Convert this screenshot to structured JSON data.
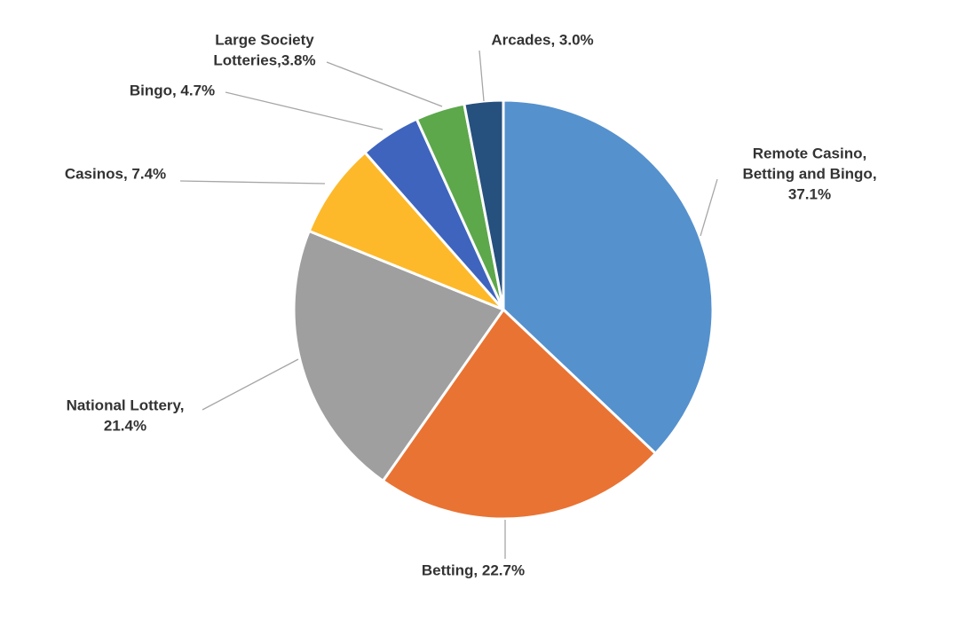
{
  "chart_data": {
    "type": "pie",
    "labels": [
      [
        "Remote Casino,",
        "Betting and Bingo,",
        "37.1%"
      ],
      [
        "Betting, 22.7%"
      ],
      [
        "National Lottery,",
        "21.4%"
      ],
      [
        "Casinos, 7.4%"
      ],
      [
        "Bingo, 4.7%"
      ],
      [
        "Large Society",
        "Lotteries,3.8%"
      ],
      [
        "Arcades, 3.0%"
      ]
    ],
    "values": [
      37.1,
      22.7,
      21.4,
      7.4,
      4.7,
      3.8,
      3.0
    ],
    "colors": [
      "#5591cd",
      "#e97333",
      "#9f9f9f",
      "#fdb92a",
      "#3e64be",
      "#5ca84b",
      "#26507e"
    ]
  }
}
